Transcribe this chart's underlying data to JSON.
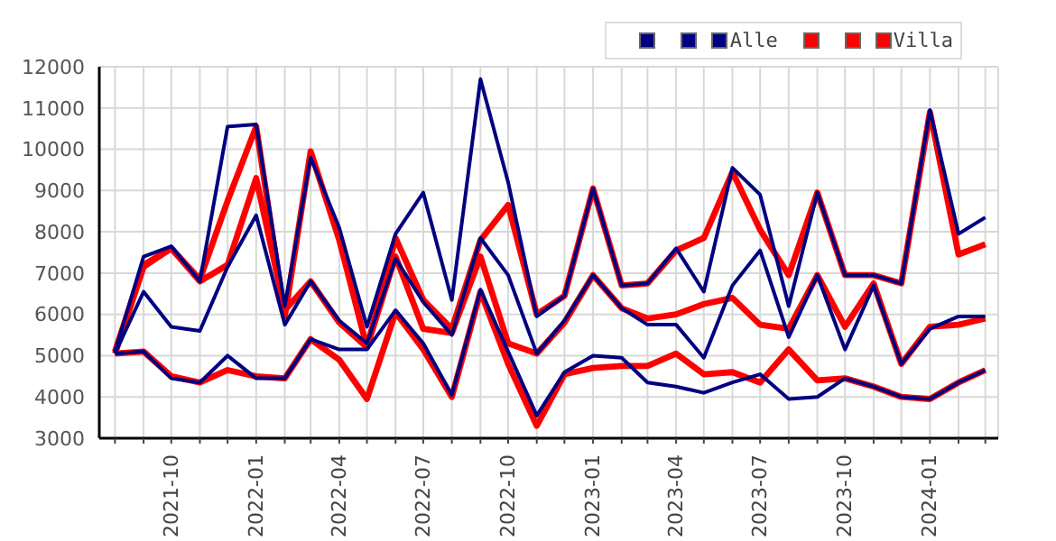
{
  "chart_data": {
    "type": "line",
    "x": [
      "2021-08",
      "2021-09",
      "2021-10",
      "2021-11",
      "2021-12",
      "2022-01",
      "2022-02",
      "2022-03",
      "2022-04",
      "2022-05",
      "2022-06",
      "2022-07",
      "2022-08",
      "2022-09",
      "2022-10",
      "2022-11",
      "2022-12",
      "2023-01",
      "2023-02",
      "2023-03",
      "2023-04",
      "2023-05",
      "2023-06",
      "2023-07",
      "2023-08",
      "2023-09",
      "2023-10",
      "2023-11",
      "2023-12",
      "2024-01",
      "2024-02",
      "2024-03"
    ],
    "series": [
      {
        "color": "#000080",
        "values": [
          5100,
          7400,
          7650,
          6800,
          10550,
          10600,
          6200,
          9800,
          8100,
          5700,
          7950,
          8950,
          6350,
          11700,
          9200,
          5950,
          6450,
          9050,
          6700,
          6750,
          7600,
          6550,
          9550,
          8900,
          6200,
          8950,
          6950,
          6950,
          6750,
          10950,
          7950,
          8350
        ]
      },
      {
        "color": "#000080",
        "values": [
          5050,
          6550,
          5700,
          5600,
          7150,
          8400,
          5750,
          6800,
          5850,
          5300,
          7350,
          6300,
          5500,
          7850,
          6950,
          5050,
          5850,
          6950,
          6150,
          5750,
          5750,
          4950,
          6700,
          7550,
          5450,
          6950,
          5150,
          6700,
          4800,
          5650,
          5950,
          5950
        ]
      },
      {
        "name": "Alle",
        "color": "#000080",
        "values": [
          5050,
          5100,
          4450,
          4350,
          5000,
          4450,
          4450,
          5400,
          5150,
          5150,
          6100,
          5300,
          4050,
          6600,
          5100,
          3550,
          4600,
          5000,
          4950,
          4350,
          4250,
          4100,
          4350,
          4550,
          3950,
          4000,
          4450,
          4250,
          4000,
          3950,
          4350,
          4650
        ]
      },
      {
        "color": "#ff0000",
        "values": [
          5100,
          7200,
          7600,
          6850,
          8750,
          10550,
          5950,
          9950,
          7800,
          5200,
          7850,
          6350,
          5650,
          7800,
          8650,
          6000,
          6450,
          9050,
          6700,
          6750,
          7550,
          7850,
          9450,
          8050,
          6950,
          8950,
          6950,
          6950,
          6750,
          10900,
          7450,
          7700
        ]
      },
      {
        "color": "#ff0000",
        "values": [
          5050,
          7150,
          7600,
          6800,
          7200,
          9300,
          6100,
          6800,
          5800,
          5200,
          7400,
          5650,
          5550,
          7400,
          5300,
          5050,
          5800,
          6950,
          6150,
          5900,
          6000,
          6250,
          6400,
          5750,
          5650,
          6950,
          5700,
          6750,
          4800,
          5700,
          5750,
          5900
        ]
      },
      {
        "name": "Villa",
        "color": "#ff0000",
        "values": [
          5050,
          5100,
          4500,
          4350,
          4650,
          4500,
          4450,
          5400,
          4900,
          3950,
          6050,
          5150,
          4000,
          6550,
          4800,
          3300,
          4550,
          4700,
          4750,
          4750,
          5050,
          4550,
          4600,
          4350,
          5150,
          4400,
          4450,
          4250,
          4000,
          3950,
          4350,
          4650
        ]
      }
    ],
    "xlim": [
      "2021-07-15",
      "2024-03-15"
    ],
    "xticks": [
      {
        "value": "2021-08",
        "label": null
      },
      {
        "value": "2021-09",
        "label": null
      },
      {
        "value": "2021-10",
        "label": "2021-10"
      },
      {
        "value": "2021-11",
        "label": null
      },
      {
        "value": "2021-12",
        "label": null
      },
      {
        "value": "2022-01",
        "label": "2022-01"
      },
      {
        "value": "2022-02",
        "label": null
      },
      {
        "value": "2022-03",
        "label": null
      },
      {
        "value": "2022-04",
        "label": "2022-04"
      },
      {
        "value": "2022-05",
        "label": null
      },
      {
        "value": "2022-06",
        "label": null
      },
      {
        "value": "2022-07",
        "label": "2022-07"
      },
      {
        "value": "2022-08",
        "label": null
      },
      {
        "value": "2022-09",
        "label": null
      },
      {
        "value": "2022-10",
        "label": "2022-10"
      },
      {
        "value": "2022-11",
        "label": null
      },
      {
        "value": "2022-12",
        "label": null
      },
      {
        "value": "2023-01",
        "label": "2023-01"
      },
      {
        "value": "2023-02",
        "label": null
      },
      {
        "value": "2023-03",
        "label": null
      },
      {
        "value": "2023-04",
        "label": "2023-04"
      },
      {
        "value": "2023-05",
        "label": null
      },
      {
        "value": "2023-06",
        "label": null
      },
      {
        "value": "2023-07",
        "label": "2023-07"
      },
      {
        "value": "2023-08",
        "label": null
      },
      {
        "value": "2023-09",
        "label": null
      },
      {
        "value": "2023-10",
        "label": "2023-10"
      },
      {
        "value": "2023-11",
        "label": null
      },
      {
        "value": "2023-12",
        "label": null
      },
      {
        "value": "2024-01",
        "label": "2024-01"
      },
      {
        "value": "2024-02",
        "label": null
      },
      {
        "value": "2024-03",
        "label": null
      }
    ],
    "ylim": [
      3000,
      12000
    ],
    "yticks": [
      3000,
      4000,
      5000,
      6000,
      7000,
      8000,
      9000,
      10000,
      11000,
      12000
    ],
    "grid": true,
    "legend": "top right",
    "marker": "none",
    "line_style": "solid"
  }
}
